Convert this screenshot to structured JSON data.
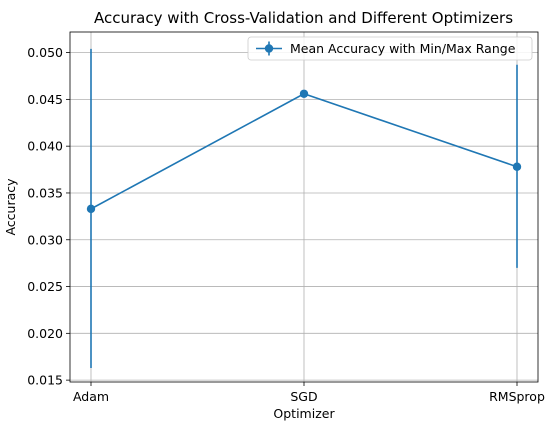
{
  "chart_data": {
    "type": "line",
    "title": "Accuracy with Cross-Validation and Different Optimizers",
    "xlabel": "Optimizer",
    "ylabel": "Accuracy",
    "categories": [
      "Adam",
      "SGD",
      "RMSprop"
    ],
    "ylim": [
      0.0148,
      0.0522
    ],
    "yticks": [
      0.015,
      0.02,
      0.025,
      0.03,
      0.035,
      0.04,
      0.045,
      0.05
    ],
    "ytick_labels": [
      "0.015",
      "0.020",
      "0.025",
      "0.030",
      "0.035",
      "0.040",
      "0.045",
      "0.050"
    ],
    "grid": true,
    "legend_position": "top-right",
    "series": [
      {
        "name": "Mean Accuracy with Min/Max Range",
        "color": "#1f77b4",
        "values": [
          0.0333,
          0.0456,
          0.0378
        ],
        "min": [
          0.0163,
          0.0456,
          0.027
        ],
        "max": [
          0.0504,
          0.0456,
          0.0487
        ]
      }
    ]
  }
}
